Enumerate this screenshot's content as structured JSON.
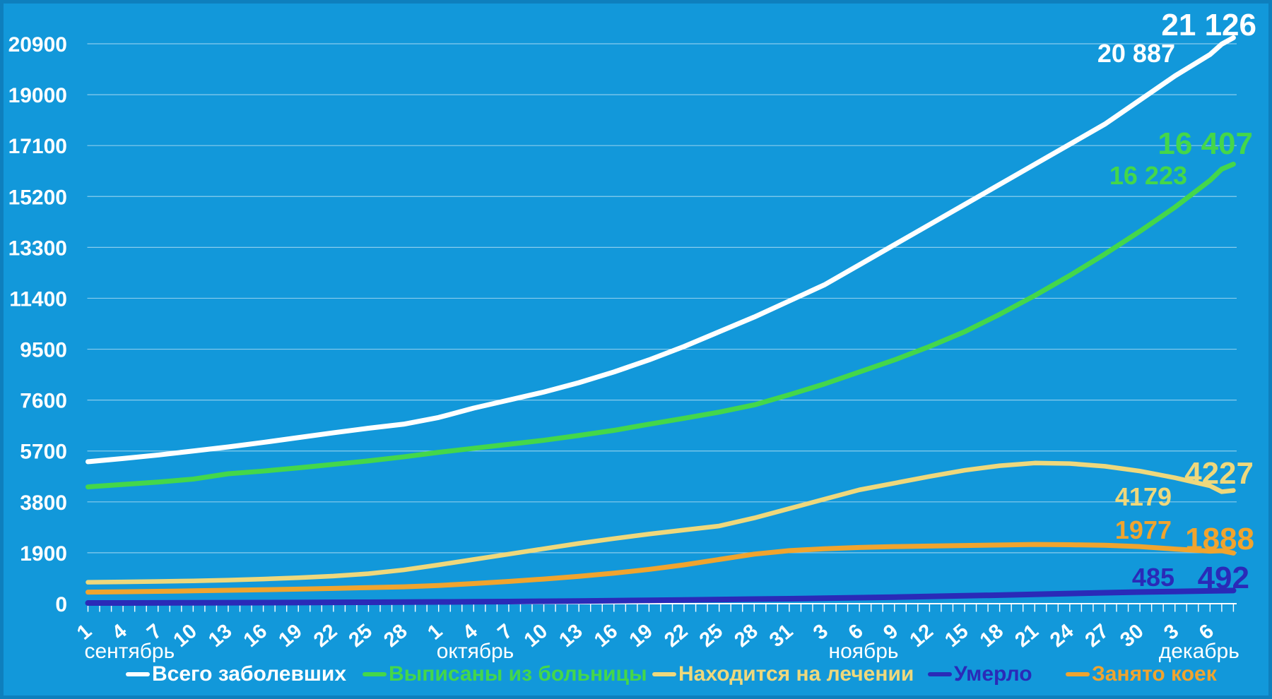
{
  "background_color": "#1298da",
  "chart_data": {
    "type": "line",
    "title": "",
    "grid": true,
    "legend_position": "bottom",
    "y_axis": {
      "ticks": [
        0,
        1900,
        3800,
        5700,
        7600,
        9500,
        11400,
        13300,
        15200,
        17100,
        19000,
        20900
      ],
      "max": 21800
    },
    "x_axis": {
      "tick_labels": [
        "1",
        "4",
        "7",
        "10",
        "13",
        "16",
        "19",
        "22",
        "25",
        "28",
        "1",
        "4",
        "7",
        "10",
        "13",
        "16",
        "19",
        "22",
        "25",
        "28",
        "31",
        "3",
        "6",
        "9",
        "12",
        "15",
        "18",
        "21",
        "24",
        "27",
        "30",
        "3",
        "6"
      ],
      "days_per_tick": 3,
      "months": [
        {
          "label": "сентябрь",
          "tick_index": 0
        },
        {
          "label": "октябрь",
          "tick_index": 10
        },
        {
          "label": "ноябрь",
          "tick_index": 21
        },
        {
          "label": "декабрь",
          "tick_index": 31
        }
      ]
    },
    "series": [
      {
        "name": "Всего заболевших",
        "color": "#ffffff",
        "values": [
          5300,
          5420,
          5550,
          5700,
          5850,
          6020,
          6200,
          6380,
          6550,
          6700,
          6950,
          7300,
          7600,
          7900,
          8250,
          8650,
          9100,
          9600,
          10150,
          10700,
          11300,
          11900,
          12650,
          13400,
          14150,
          14900,
          15650,
          16400,
          17150,
          17900,
          18800,
          19700,
          20500
        ],
        "end_values": [
          20887,
          21126
        ],
        "end_labels": [
          "20 887",
          "21 126"
        ]
      },
      {
        "name": "Выписаны из больницы",
        "color": "#44d74a",
        "values": [
          4360,
          4450,
          4540,
          4650,
          4850,
          4950,
          5070,
          5200,
          5330,
          5480,
          5650,
          5800,
          5950,
          6100,
          6280,
          6470,
          6700,
          6920,
          7150,
          7420,
          7800,
          8200,
          8650,
          9100,
          9600,
          10150,
          10800,
          11500,
          12250,
          13050,
          13900,
          14800,
          15800
        ],
        "end_values": [
          16223,
          16407
        ],
        "end_labels": [
          "16 223",
          "16 407"
        ]
      },
      {
        "name": "Находится на лечении",
        "color": "#eed87c",
        "values": [
          800,
          815,
          830,
          850,
          880,
          920,
          970,
          1030,
          1120,
          1260,
          1450,
          1650,
          1850,
          2050,
          2250,
          2430,
          2600,
          2750,
          2900,
          3200,
          3550,
          3900,
          4250,
          4500,
          4750,
          4980,
          5150,
          5250,
          5230,
          5130,
          4950,
          4700,
          4400
        ],
        "end_values": [
          4179,
          4227
        ],
        "end_labels": [
          "4179",
          "4227"
        ]
      },
      {
        "name": "Умерло",
        "color": "#2a2ab8",
        "values": [
          25,
          28,
          30,
          33,
          36,
          40,
          44,
          48,
          53,
          58,
          65,
          72,
          80,
          90,
          100,
          112,
          125,
          140,
          155,
          170,
          185,
          205,
          225,
          245,
          270,
          295,
          320,
          350,
          380,
          410,
          435,
          455,
          478
        ],
        "end_values": [
          485,
          492
        ],
        "end_labels": [
          "485",
          "492"
        ]
      },
      {
        "name": "Занято коек",
        "color": "#f0a42e",
        "values": [
          430,
          445,
          460,
          480,
          500,
          520,
          545,
          570,
          600,
          630,
          680,
          750,
          830,
          920,
          1020,
          1140,
          1280,
          1450,
          1650,
          1850,
          1980,
          2050,
          2100,
          2130,
          2150,
          2170,
          2190,
          2210,
          2200,
          2180,
          2130,
          2040,
          1960
        ],
        "end_values": [
          1977,
          1888
        ],
        "end_labels": [
          "1977",
          "1888"
        ]
      }
    ]
  }
}
